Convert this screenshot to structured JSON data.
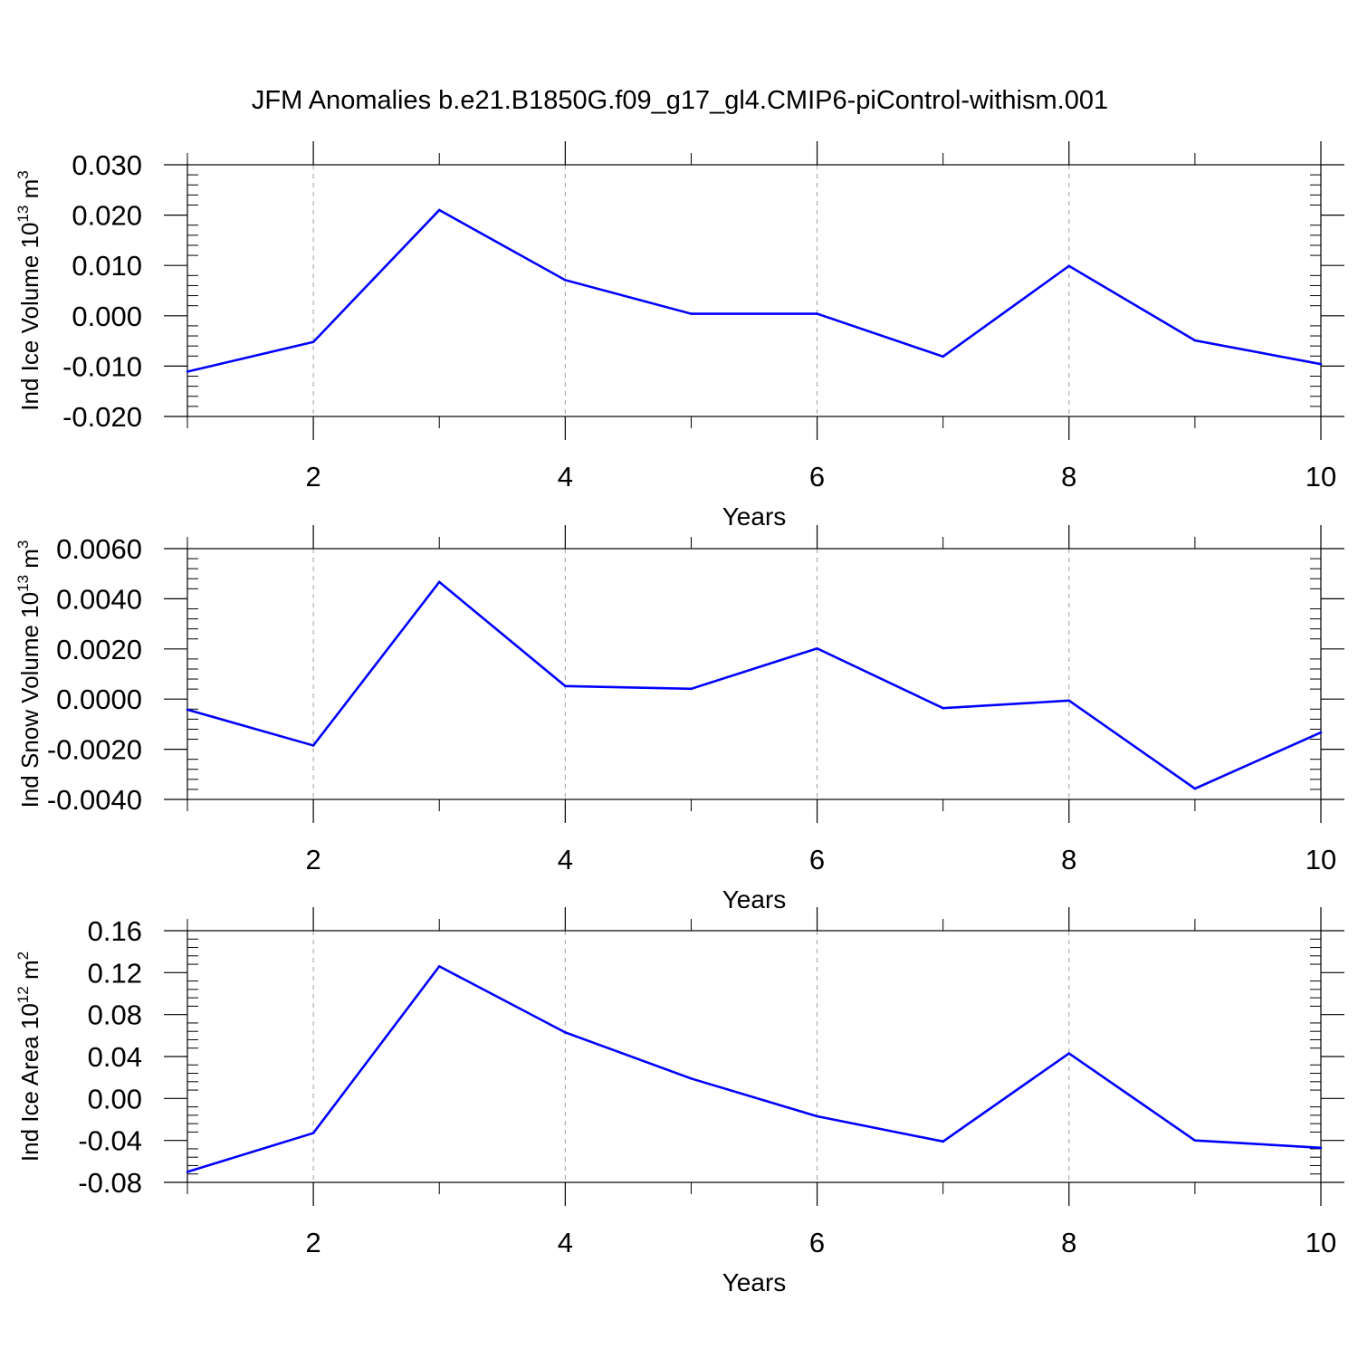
{
  "figure": {
    "title": "JFM Anomalies b.e21.B1850G.f09_g17_gl4.CMIP6-piControl-withism.001"
  },
  "chart_data": [
    {
      "type": "line",
      "id": "ice-volume",
      "ylabel": "Ind Ice Volume 10",
      "ylabel_sup": "13",
      "ylabel_unit": "m",
      "ylabel_unit_sup": "3",
      "xlabel": "Years",
      "xlim": [
        1,
        10
      ],
      "ylim": [
        -0.02,
        0.03
      ],
      "xticks": [
        2,
        4,
        6,
        8,
        10
      ],
      "xtick_labels": [
        "2",
        "4",
        "6",
        "8",
        "10"
      ],
      "yticks": [
        -0.02,
        -0.01,
        0.0,
        0.01,
        0.02,
        0.03
      ],
      "ytick_labels": [
        "-0.020",
        "-0.010",
        "0.000",
        "0.010",
        "0.020",
        "0.030"
      ],
      "grid": "vertical-dashed",
      "color": "#0000ff",
      "x": [
        1,
        2,
        3,
        4,
        5,
        6,
        7,
        8,
        9,
        10
      ],
      "y": [
        -0.0111,
        -0.0052,
        0.021,
        0.0071,
        0.0004,
        0.0004,
        -0.0081,
        0.0099,
        -0.0049,
        -0.0096
      ]
    },
    {
      "type": "line",
      "id": "snow-volume",
      "ylabel": "Ind Snow Volume 10",
      "ylabel_sup": "13",
      "ylabel_unit": "m",
      "ylabel_unit_sup": "3",
      "xlabel": "Years",
      "xlim": [
        1,
        10
      ],
      "ylim": [
        -0.004,
        0.006
      ],
      "xticks": [
        2,
        4,
        6,
        8,
        10
      ],
      "xtick_labels": [
        "2",
        "4",
        "6",
        "8",
        "10"
      ],
      "yticks": [
        -0.004,
        -0.002,
        0.0,
        0.002,
        0.004,
        0.006
      ],
      "ytick_labels": [
        "-0.0040",
        "-0.0020",
        "0.0000",
        "0.0020",
        "0.0040",
        "0.0060"
      ],
      "grid": "vertical-dashed",
      "color": "#0000ff",
      "x": [
        1,
        2,
        3,
        4,
        5,
        6,
        7,
        8,
        9,
        10
      ],
      "y": [
        -0.00042,
        -0.00185,
        0.00467,
        0.00052,
        0.00041,
        0.00202,
        -0.00036,
        -6e-05,
        -0.00357,
        -0.00133
      ]
    },
    {
      "type": "line",
      "id": "ice-area",
      "ylabel": "Ind Ice Area 10",
      "ylabel_sup": "12",
      "ylabel_unit": "m",
      "ylabel_unit_sup": "2",
      "xlabel": "Years",
      "xlim": [
        1,
        10
      ],
      "ylim": [
        -0.08,
        0.16
      ],
      "xticks": [
        2,
        4,
        6,
        8,
        10
      ],
      "xtick_labels": [
        "2",
        "4",
        "6",
        "8",
        "10"
      ],
      "yticks": [
        -0.08,
        -0.04,
        0.0,
        0.04,
        0.08,
        0.12,
        0.16
      ],
      "ytick_labels": [
        "-0.08",
        "-0.04",
        "0.00",
        "0.04",
        "0.08",
        "0.12",
        "0.16"
      ],
      "grid": "vertical-dashed",
      "color": "#0000ff",
      "x": [
        1,
        2,
        3,
        4,
        5,
        6,
        7,
        8,
        9,
        10
      ],
      "y": [
        -0.07,
        -0.033,
        0.126,
        0.063,
        0.019,
        -0.017,
        -0.041,
        0.043,
        -0.04,
        -0.047
      ]
    }
  ]
}
